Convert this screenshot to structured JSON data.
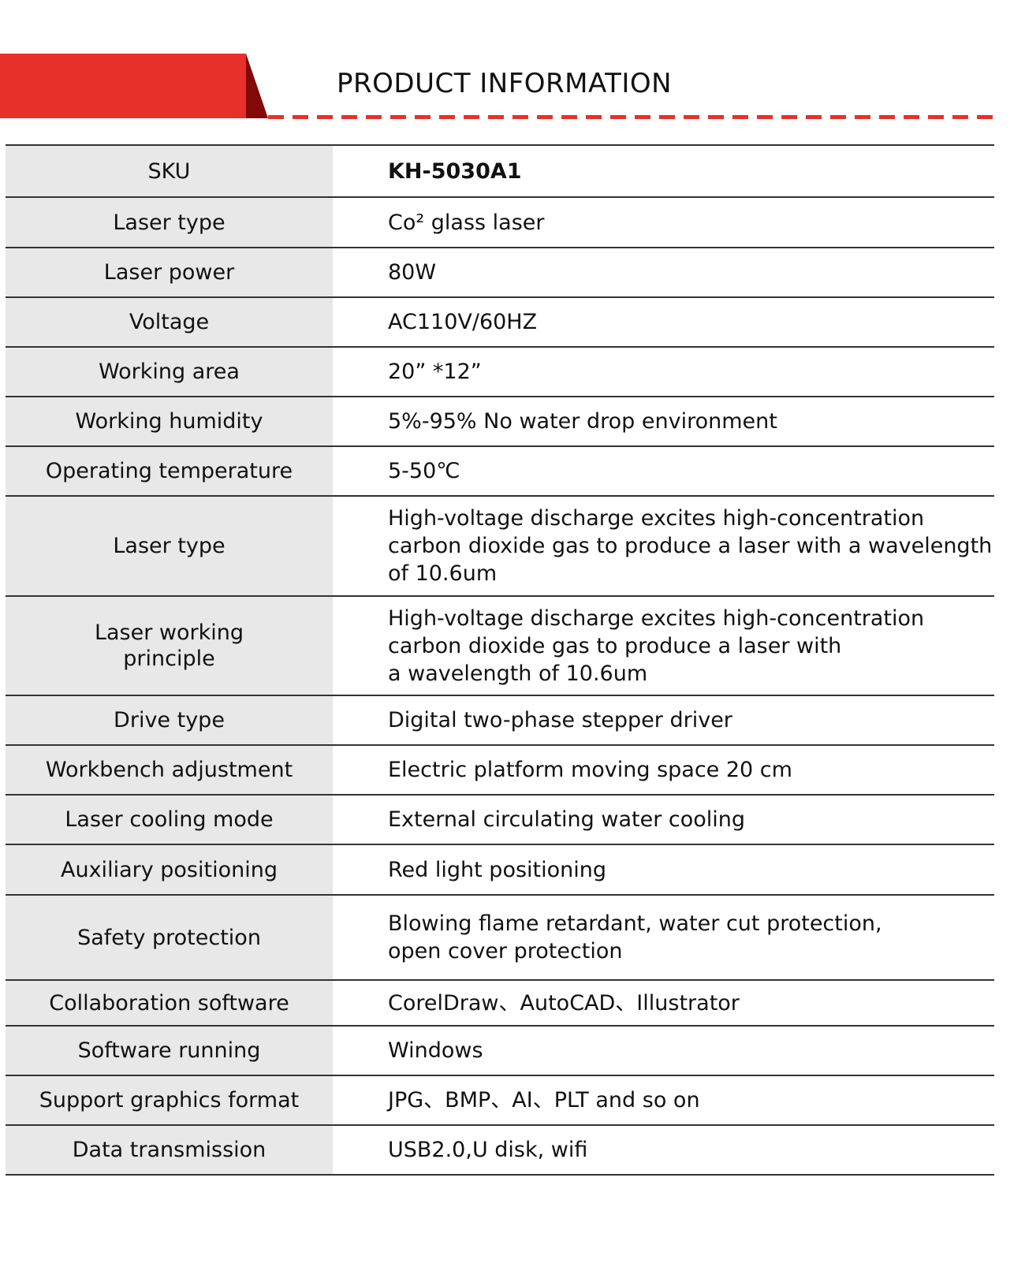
{
  "header": {
    "title": "PRODUCT INFORMATION",
    "accent_color": "#e8302a",
    "accent_dark": "#850808"
  },
  "rows": [
    {
      "label": "SKU",
      "value": "KH-5030A1",
      "bold": true
    },
    {
      "label": "Laser  type",
      "value": "Co² glass  laser"
    },
    {
      "label": "Laser power",
      "value": "80W"
    },
    {
      "label": "Voltage",
      "value": "AC110V/60HZ"
    },
    {
      "label": "Working area",
      "value": "20”  *12”"
    },
    {
      "label": "Working humidity",
      "value": "5%-95% No water drop environment"
    },
    {
      "label": "Operating temperature",
      "value": "5-50℃"
    },
    {
      "label": "Laser type",
      "value": "High-voltage discharge excites high-concentration\ncarbon dioxide gas to produce a laser with a wavelength\nof 10.6um"
    },
    {
      "label": "Laser working\nprinciple",
      "value": "High-voltage discharge excites high-concentration\ncarbon dioxide gas to produce a laser with\na wavelength of 10.6um"
    },
    {
      "label": "Drive type",
      "value": "Digital two-phase stepper driver"
    },
    {
      "label": "Workbench adjustment",
      "value": "Electric platform moving space 20 cm"
    },
    {
      "label": "Laser cooling mode",
      "value": "External circulating water cooling"
    },
    {
      "label": "Auxiliary positioning",
      "value": "Red light positioning"
    },
    {
      "label": "Safety protection",
      "value": "Blowing flame retardant, water cut protection,\nopen cover protection"
    },
    {
      "label": "Collaboration software",
      "value": "CorelDraw、AutoCAD、Illustrator"
    },
    {
      "label": "Software running",
      "value": "Windows"
    },
    {
      "label": "Support graphics format",
      "value": "JPG、BMP、AI、PLT and so on"
    },
    {
      "label": "Data transmission",
      "value": "USB2.0,U disk, wifi"
    }
  ]
}
